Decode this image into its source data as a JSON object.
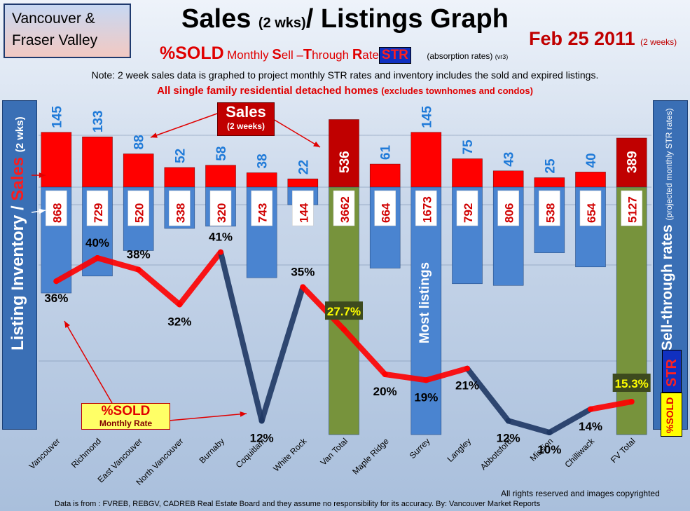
{
  "header": {
    "region_line1": "Vancouver &",
    "region_line2": "Fraser Valley",
    "title_main": "Sales ",
    "title_small": "(2 wks)",
    "title_end": "/ Listings Graph",
    "date": "Feb 25 2011",
    "date_note": "(2 weeks)",
    "subtitle_sold": "%SOLD",
    "subtitle_m1": "Monthly ",
    "subtitle_s": "S",
    "subtitle_m2": "ell –",
    "subtitle_t": "T",
    "subtitle_m3": "hrough ",
    "subtitle_r": "R",
    "subtitle_m4": "ate",
    "subtitle_str": "STR",
    "subtitle_abs": "(absorption rates)",
    "subtitle_ver": "(vr3)",
    "note": "Note: 2 week sales data is graphed to project monthly STR rates and inventory includes the sold and expired listings.",
    "note2": "All single family residential detached homes",
    "note2_small": "(excludes townhomes and condos)"
  },
  "axes": {
    "y_left_main": "Listing Inventory / ",
    "y_left_sales": "Sales",
    "y_left_small": "(2 wks)",
    "y_right_main": "Sell-through rates",
    "y_right_small": "(projected monthly STR rates)",
    "str_badge": "STR",
    "sold_badge": "%SOLD"
  },
  "annotations": {
    "sales_box_title": "Sales",
    "sales_box_sub": "(2 weeks)",
    "sold_box_title": "%SOLD",
    "sold_box_sub": "Monthly Rate",
    "most_listings": "Most listings"
  },
  "footer": {
    "rights": "All rights reserved and  images copyrighted",
    "source": "Data is from : FVREB, REBGV, CADREB Real Estate Board and they assume no responsibility for its accuracy. By: Vancouver Market Reports"
  },
  "colors": {
    "sales_bar": "#ff0000",
    "sales_total_bar": "#c00000",
    "listing_bar": "#4a84d0",
    "total_bar": "#77933c",
    "line_red": "#ff0000",
    "line_dark": "#1f3864",
    "highlight_label_bg": "#3d4a1e",
    "highlight_label_text": "#ffff00"
  },
  "chart_data": {
    "type": "bar",
    "categories": [
      "Vancouver",
      "Richmond",
      "East Vancouver",
      "North Vancouver",
      "Burnaby",
      "Coquitlam",
      "White Rock",
      "Van Total",
      "Maple Ridge",
      "Surrey",
      "Langley",
      "Abbotsford",
      "Mission",
      "Chilliwack",
      "FV Total"
    ],
    "series": [
      {
        "name": "Sales",
        "values": [
          145,
          133,
          88,
          52,
          58,
          38,
          22,
          536,
          61,
          145,
          75,
          43,
          25,
          40,
          389
        ]
      },
      {
        "name": "Listing Inventory",
        "values": [
          868,
          729,
          520,
          338,
          320,
          743,
          144,
          3662,
          664,
          1673,
          792,
          806,
          538,
          654,
          5127
        ]
      },
      {
        "name": "%SOLD",
        "values": [
          "36%",
          "40%",
          "38%",
          "32%",
          "41%",
          "12%",
          "35%",
          "27.7%",
          "20%",
          "19%",
          "21%",
          "12%",
          "10%",
          "14%",
          "15.3%"
        ]
      }
    ],
    "totals": [
      "Van Total",
      "FV Total"
    ]
  }
}
